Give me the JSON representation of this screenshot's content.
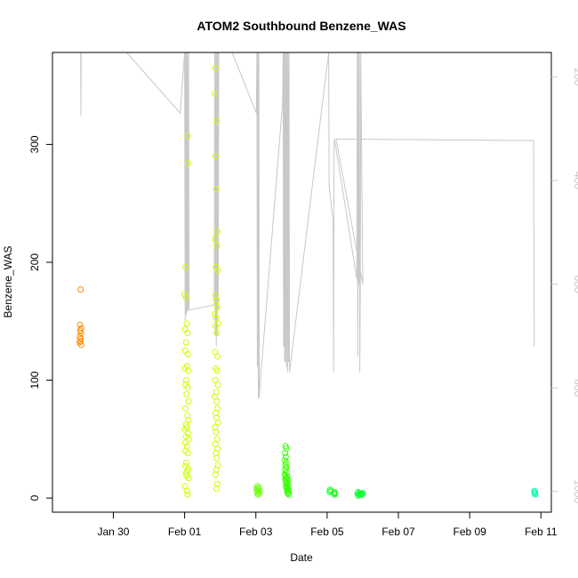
{
  "chart_data": {
    "type": "scatter",
    "title": "ATOM2 Southbound Benzene_WAS",
    "xlabel": "Date",
    "ylabel": "Benzene_WAS",
    "x_is_date": true,
    "xlim": [
      "2017-01-28T07:00",
      "2017-02-11T07:00"
    ],
    "ylim": [
      -12,
      378
    ],
    "x_ticks": [
      {
        "value": "2017-01-30",
        "label": "Jan 30"
      },
      {
        "value": "2017-02-01",
        "label": "Feb 01"
      },
      {
        "value": "2017-02-03",
        "label": "Feb 03"
      },
      {
        "value": "2017-02-05",
        "label": "Feb 05"
      },
      {
        "value": "2017-02-07",
        "label": "Feb 07"
      },
      {
        "value": "2017-02-09",
        "label": "Feb 09"
      },
      {
        "value": "2017-02-11",
        "label": "Feb 11"
      }
    ],
    "y_ticks": [
      0,
      100,
      200,
      300
    ],
    "right_axis": {
      "ticks": [
        200,
        400,
        600,
        800,
        1000
      ],
      "ylim": [
        1000,
        200
      ],
      "range": [
        1040,
        153
      ],
      "reversed": true,
      "color": "#c8c8c8",
      "series_type": "line"
    },
    "grid": false,
    "legend": "none",
    "series": [
      {
        "color": "#ff8c00",
        "points": [
          [
            "2017-01-29T02:00",
            177
          ],
          [
            "2017-01-29T01:30",
            147
          ],
          [
            "2017-01-29T02:20",
            144
          ],
          [
            "2017-01-29T01:40",
            142
          ],
          [
            "2017-01-29T02:10",
            140
          ],
          [
            "2017-01-29T01:30",
            137
          ],
          [
            "2017-01-29T02:00",
            135
          ],
          [
            "2017-01-29T01:50",
            133
          ],
          [
            "2017-01-29T01:20",
            132
          ],
          [
            "2017-01-29T02:20",
            130
          ]
        ]
      },
      {
        "color": "#ccff00",
        "points": [
          [
            "2017-02-01T00:00",
            173
          ],
          [
            "2017-02-01T01:00",
            170
          ],
          [
            "2017-02-01T02:00",
            307
          ],
          [
            "2017-02-01T02:20",
            284
          ],
          [
            "2017-02-01T00:40",
            196
          ],
          [
            "2017-02-01T01:30",
            148
          ],
          [
            "2017-02-01T00:20",
            143
          ],
          [
            "2017-02-01T02:00",
            140
          ],
          [
            "2017-02-01T01:00",
            132
          ],
          [
            "2017-02-01T00:30",
            125
          ],
          [
            "2017-02-01T02:10",
            122
          ],
          [
            "2017-02-01T01:40",
            112
          ],
          [
            "2017-02-01T00:10",
            110
          ],
          [
            "2017-02-01T02:30",
            108
          ],
          [
            "2017-02-01T01:10",
            100
          ],
          [
            "2017-02-01T00:40",
            96
          ],
          [
            "2017-02-01T02:00",
            94
          ],
          [
            "2017-02-01T01:20",
            88
          ],
          [
            "2017-02-01T02:40",
            82
          ],
          [
            "2017-02-01T00:30",
            76
          ],
          [
            "2017-02-01T01:50",
            70
          ],
          [
            "2017-02-01T02:30",
            66
          ],
          [
            "2017-02-01T00:50",
            62
          ],
          [
            "2017-02-01T01:30",
            60
          ],
          [
            "2017-02-01T00:10",
            58
          ],
          [
            "2017-02-01T02:20",
            55
          ],
          [
            "2017-02-01T01:00",
            52
          ],
          [
            "2017-02-01T02:50",
            50
          ],
          [
            "2017-02-01T00:20",
            47
          ],
          [
            "2017-02-01T01:40",
            44
          ],
          [
            "2017-02-01T00:40",
            40
          ],
          [
            "2017-02-01T02:10",
            38
          ],
          [
            "2017-02-01T01:10",
            30
          ],
          [
            "2017-02-01T00:30",
            27
          ],
          [
            "2017-02-01T02:30",
            25
          ],
          [
            "2017-02-01T01:50",
            23
          ],
          [
            "2017-02-01T00:50",
            21
          ],
          [
            "2017-02-01T01:20",
            19
          ],
          [
            "2017-02-01T02:40",
            17
          ],
          [
            "2017-02-01T00:20",
            10
          ],
          [
            "2017-02-01T01:40",
            6
          ],
          [
            "2017-02-01T02:00",
            3
          ],
          [
            "2017-02-01T20:40",
            365
          ],
          [
            "2017-02-01T20:20",
            343
          ],
          [
            "2017-02-01T21:40",
            320
          ],
          [
            "2017-02-01T20:50",
            290
          ],
          [
            "2017-02-01T21:20",
            262
          ],
          [
            "2017-02-01T22:10",
            226
          ],
          [
            "2017-02-01T20:30",
            220
          ],
          [
            "2017-02-01T21:50",
            214
          ],
          [
            "2017-02-01T21:00",
            196
          ],
          [
            "2017-02-01T22:20",
            193
          ],
          [
            "2017-02-01T20:40",
            172
          ],
          [
            "2017-02-01T21:30",
            168
          ],
          [
            "2017-02-01T22:00",
            162
          ],
          [
            "2017-02-01T20:20",
            156
          ],
          [
            "2017-02-01T21:10",
            153
          ],
          [
            "2017-02-01T22:30",
            148
          ],
          [
            "2017-02-01T20:50",
            146
          ],
          [
            "2017-02-01T21:40",
            140
          ],
          [
            "2017-02-01T20:30",
            124
          ],
          [
            "2017-02-01T22:10",
            120
          ],
          [
            "2017-02-01T21:00",
            110
          ],
          [
            "2017-02-01T21:50",
            108
          ],
          [
            "2017-02-01T20:40",
            100
          ],
          [
            "2017-02-01T22:20",
            96
          ],
          [
            "2017-02-01T21:20",
            90
          ],
          [
            "2017-02-01T20:20",
            86
          ],
          [
            "2017-02-01T21:40",
            82
          ],
          [
            "2017-02-01T22:00",
            76
          ],
          [
            "2017-02-01T20:50",
            72
          ],
          [
            "2017-02-01T21:30",
            68
          ],
          [
            "2017-02-01T22:30",
            64
          ],
          [
            "2017-02-01T20:30",
            60
          ],
          [
            "2017-02-01T21:10",
            56
          ],
          [
            "2017-02-01T21:50",
            50
          ],
          [
            "2017-02-01T20:40",
            46
          ],
          [
            "2017-02-01T22:10",
            42
          ],
          [
            "2017-02-01T21:00",
            38
          ],
          [
            "2017-02-01T21:40",
            34
          ],
          [
            "2017-02-01T22:20",
            28
          ],
          [
            "2017-02-01T21:20",
            24
          ],
          [
            "2017-02-01T20:50",
            20
          ],
          [
            "2017-02-01T22:00",
            12
          ],
          [
            "2017-02-01T21:30",
            8
          ]
        ]
      },
      {
        "color": "#66ff00",
        "points": [
          [
            "2017-02-03T01:00",
            10
          ],
          [
            "2017-02-03T02:00",
            9
          ],
          [
            "2017-02-03T00:30",
            8
          ],
          [
            "2017-02-03T01:30",
            7
          ],
          [
            "2017-02-03T02:30",
            6
          ],
          [
            "2017-02-03T00:50",
            5
          ],
          [
            "2017-02-03T02:10",
            4
          ],
          [
            "2017-02-03T01:20",
            3
          ]
        ]
      },
      {
        "color": "#33ff00",
        "points": [
          [
            "2017-02-03T20:00",
            44
          ],
          [
            "2017-02-03T20:30",
            42
          ],
          [
            "2017-02-03T19:40",
            38
          ],
          [
            "2017-02-03T20:10",
            35
          ],
          [
            "2017-02-03T19:30",
            32
          ],
          [
            "2017-02-03T20:40",
            30
          ],
          [
            "2017-02-03T19:50",
            28
          ],
          [
            "2017-02-03T20:20",
            26
          ],
          [
            "2017-02-03T19:40",
            24
          ],
          [
            "2017-02-03T20:50",
            22
          ],
          [
            "2017-02-03T19:30",
            20
          ],
          [
            "2017-02-03T20:00",
            19
          ],
          [
            "2017-02-03T21:10",
            18
          ],
          [
            "2017-02-03T20:30",
            17
          ],
          [
            "2017-02-03T19:50",
            16
          ],
          [
            "2017-02-03T21:30",
            15
          ],
          [
            "2017-02-03T20:10",
            14
          ],
          [
            "2017-02-03T21:00",
            13
          ],
          [
            "2017-02-03T20:40",
            12
          ],
          [
            "2017-02-03T21:40",
            11
          ],
          [
            "2017-02-03T20:20",
            10
          ],
          [
            "2017-02-03T21:20",
            9
          ],
          [
            "2017-02-03T20:50",
            8
          ],
          [
            "2017-02-03T21:50",
            7
          ],
          [
            "2017-02-03T21:10",
            6
          ],
          [
            "2017-02-03T22:00",
            5
          ],
          [
            "2017-02-03T21:30",
            4
          ],
          [
            "2017-02-03T22:10",
            3
          ]
        ]
      },
      {
        "color": "#22ff22",
        "points": [
          [
            "2017-02-05T02:00",
            7
          ],
          [
            "2017-02-05T02:30",
            6
          ],
          [
            "2017-02-05T01:40",
            5
          ],
          [
            "2017-02-05T05:00",
            5
          ],
          [
            "2017-02-05T05:20",
            4
          ],
          [
            "2017-02-05T04:40",
            4
          ],
          [
            "2017-02-05T05:10",
            3
          ]
        ]
      },
      {
        "color": "#11ff33",
        "points": [
          [
            "2017-02-05T21:00",
            5
          ],
          [
            "2017-02-05T22:00",
            4
          ],
          [
            "2017-02-05T20:30",
            4
          ],
          [
            "2017-02-05T23:00",
            4
          ],
          [
            "2017-02-05T21:30",
            3
          ],
          [
            "2017-02-05T22:30",
            3
          ],
          [
            "2017-02-05T23:30",
            3
          ],
          [
            "2017-02-06T00:00",
            4
          ],
          [
            "2017-02-05T20:50",
            2
          ]
        ]
      },
      {
        "color": "#00ffaa",
        "points": [
          [
            "2017-02-10T19:30",
            6
          ],
          [
            "2017-02-10T20:00",
            5
          ],
          [
            "2017-02-10T19:40",
            4
          ],
          [
            "2017-02-10T20:10",
            3
          ]
        ]
      }
    ],
    "overlay_line": {
      "color": "#c8c8c8",
      "axis": "right",
      "points": [
        [
          "2017-01-29T02:00",
          153
        ],
        [
          "2017-01-29T02:10",
          275
        ],
        [
          "2017-01-29T02:20",
          153
        ],
        [
          "2017-01-30T09:00",
          153
        ],
        [
          "2017-01-31T21:00",
          270
        ],
        [
          "2017-02-01T00:00",
          153
        ],
        [
          "2017-02-01T00:20",
          670
        ],
        [
          "2017-02-01T00:40",
          153
        ],
        [
          "2017-02-01T01:00",
          660
        ],
        [
          "2017-02-01T01:20",
          153
        ],
        [
          "2017-02-01T01:40",
          655
        ],
        [
          "2017-02-01T02:00",
          153
        ],
        [
          "2017-02-01T02:20",
          650
        ],
        [
          "2017-02-01T02:40",
          153
        ],
        [
          "2017-02-01T03:00",
          650
        ],
        [
          "2017-02-01T20:00",
          640
        ],
        [
          "2017-02-01T20:20",
          153
        ],
        [
          "2017-02-01T20:40",
          700
        ],
        [
          "2017-02-01T21:00",
          153
        ],
        [
          "2017-02-01T21:20",
          720
        ],
        [
          "2017-02-01T21:40",
          153
        ],
        [
          "2017-02-01T22:00",
          700
        ],
        [
          "2017-02-01T22:20",
          153
        ],
        [
          "2017-02-01T22:40",
          650
        ],
        [
          "2017-02-01T23:00",
          153
        ],
        [
          "2017-02-02T08:00",
          153
        ],
        [
          "2017-02-03T00:20",
          270
        ],
        [
          "2017-02-03T00:40",
          153
        ],
        [
          "2017-02-03T01:00",
          760
        ],
        [
          "2017-02-03T01:20",
          153
        ],
        [
          "2017-02-03T01:40",
          820
        ],
        [
          "2017-02-03T02:00",
          153
        ],
        [
          "2017-02-03T02:20",
          820
        ],
        [
          "2017-02-03T02:40",
          800
        ],
        [
          "2017-02-03T18:00",
          250
        ],
        [
          "2017-02-03T18:20",
          153
        ],
        [
          "2017-02-03T18:40",
          720
        ],
        [
          "2017-02-03T19:00",
          153
        ],
        [
          "2017-02-03T19:20",
          750
        ],
        [
          "2017-02-03T19:40",
          153
        ],
        [
          "2017-02-03T20:00",
          750
        ],
        [
          "2017-02-03T20:20",
          153
        ],
        [
          "2017-02-03T20:40",
          760
        ],
        [
          "2017-02-03T21:00",
          153
        ],
        [
          "2017-02-03T21:20",
          770
        ],
        [
          "2017-02-03T21:40",
          153
        ],
        [
          "2017-02-03T22:00",
          750
        ],
        [
          "2017-02-03T22:20",
          153
        ],
        [
          "2017-02-03T22:40",
          770
        ],
        [
          "2017-02-05T01:00",
          153
        ],
        [
          "2017-02-05T01:20",
          410
        ],
        [
          "2017-02-05T04:00",
          480
        ],
        [
          "2017-02-05T04:20",
          770
        ],
        [
          "2017-02-05T04:40",
          330
        ],
        [
          "2017-02-05T05:00",
          320
        ],
        [
          "2017-02-05T20:00",
          590
        ],
        [
          "2017-02-05T20:20",
          153
        ],
        [
          "2017-02-05T20:40",
          740
        ],
        [
          "2017-02-05T21:00",
          153
        ],
        [
          "2017-02-05T21:20",
          600
        ],
        [
          "2017-02-05T21:40",
          153
        ],
        [
          "2017-02-05T22:00",
          770
        ],
        [
          "2017-02-05T22:20",
          600
        ],
        [
          "2017-02-05T22:40",
          153
        ],
        [
          "2017-02-06T00:00",
          600
        ],
        [
          "2017-02-05T06:00",
          320
        ],
        [
          "2017-02-10T19:00",
          323
        ],
        [
          "2017-02-10T19:30",
          720
        ]
      ]
    }
  }
}
